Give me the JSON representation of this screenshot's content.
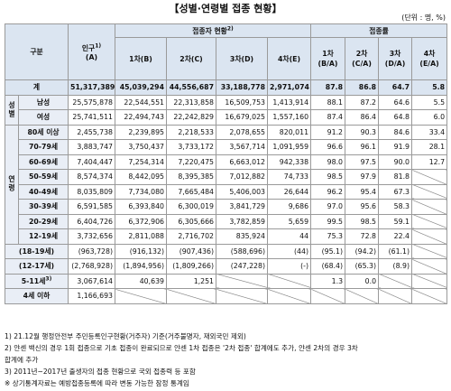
{
  "title": "【성별·연령별 접종 현황】",
  "unit": "(단위 : 명, %)",
  "table": {
    "header": {
      "category": "구분",
      "population": "인구",
      "population_note": "1)",
      "population_ref": "(A)",
      "vaccinated": "접종자 현황",
      "vaccinated_note": "2)",
      "rate": "접종률",
      "vaccinated_cols": [
        "1차(B)",
        "2차(C)",
        "3차(D)",
        "4차(E)"
      ],
      "rate_cols": [
        [
          "1차",
          "(B/A)"
        ],
        [
          "2차",
          "(C/A)"
        ],
        [
          "3차",
          "(D/A)"
        ],
        [
          "4차",
          "(E/A)"
        ]
      ]
    },
    "rows": [
      {
        "label": "계",
        "cells": [
          "51,317,389",
          "45,039,294",
          "44,556,687",
          "33,188,778",
          "2,971,074",
          "87.8",
          "86.8",
          "64.7",
          "5.8"
        ]
      },
      {
        "group": "성별",
        "rows": [
          {
            "label": "남성",
            "cells": [
              "25,575,878",
              "22,544,551",
              "22,313,858",
              "16,509,753",
              "1,413,914",
              "88.1",
              "87.2",
              "64.6",
              "5.5"
            ]
          },
          {
            "label": "여성",
            "cells": [
              "25,741,511",
              "22,494,743",
              "22,242,829",
              "16,679,025",
              "1,557,160",
              "87.4",
              "86.4",
              "64.8",
              "6.0"
            ]
          }
        ]
      },
      {
        "group": "연령",
        "rows": [
          {
            "label": "80세 이상",
            "cells": [
              "2,455,738",
              "2,239,895",
              "2,218,533",
              "2,078,655",
              "820,011",
              "91.2",
              "90.3",
              "84.6",
              "33.4"
            ]
          },
          {
            "label": "70-79세",
            "cells": [
              "3,883,747",
              "3,750,437",
              "3,733,172",
              "3,567,714",
              "1,091,959",
              "96.6",
              "96.1",
              "91.9",
              "28.1"
            ]
          },
          {
            "label": "60-69세",
            "cells": [
              "7,404,447",
              "7,254,314",
              "7,220,475",
              "6,663,012",
              "942,338",
              "98.0",
              "97.5",
              "90.0",
              "12.7"
            ]
          },
          {
            "label": "50-59세",
            "cells": [
              "8,574,374",
              "8,442,095",
              "8,395,385",
              "7,012,882",
              "74,733",
              "98.5",
              "97.9",
              "81.8",
              null
            ]
          },
          {
            "label": "40-49세",
            "cells": [
              "8,035,809",
              "7,734,080",
              "7,665,484",
              "5,406,003",
              "26,644",
              "96.2",
              "95.4",
              "67.3",
              null
            ]
          },
          {
            "label": "30-39세",
            "cells": [
              "6,591,585",
              "6,393,840",
              "6,300,019",
              "3,841,729",
              "9,686",
              "97.0",
              "95.6",
              "58.3",
              null
            ]
          },
          {
            "label": "20-29세",
            "cells": [
              "6,404,726",
              "6,372,906",
              "6,305,666",
              "3,782,859",
              "5,659",
              "99.5",
              "98.5",
              "59.1",
              null
            ]
          },
          {
            "label": "12-19세",
            "cells": [
              "3,732,656",
              "2,811,088",
              "2,716,702",
              "835,924",
              "44",
              "75.3",
              "72.8",
              "22.4",
              null
            ]
          }
        ]
      },
      {
        "label": "(18-19세)",
        "cells": [
          "(963,728)",
          "(916,132)",
          "(907,436)",
          "(588,696)",
          "(44)",
          "(95.1)",
          "(94.2)",
          "(61.1)",
          null
        ]
      },
      {
        "label": "(12-17세)",
        "cells": [
          "(2,768,928)",
          "(1,894,956)",
          "(1,809,266)",
          "(247,228)",
          "(-)",
          "(68.4)",
          "(65.3)",
          "(8.9)",
          null
        ]
      },
      {
        "label": "5-11세",
        "note": "3)",
        "cells": [
          "3,067,614",
          "40,639",
          "1,251",
          null,
          null,
          "1.3",
          "0.0",
          null,
          null
        ]
      },
      {
        "label": "4세 이하",
        "cells": [
          "1,166,693",
          null,
          null,
          null,
          null,
          null,
          null,
          null,
          null
        ]
      }
    ]
  },
  "notes": [
    "1) 21.12월 행정안전부 주민등록인구현황(거주자) 기준(거주불명자, 재외국민 제외)",
    "2) 얀센 백신의 경우 1회 접종으로 기초 접종이 완료되므로 얀센 1차 접종은 '2차 접종' 합계에도 추가, 얀센 2차의 경우 3차",
    "합계에 추가",
    "3) 2011년~2017년 출생자의 접종 현황으로 국외 접종력 등 포함",
    "※ 상기통계자료는 예방접종등록에 따라 변동 가능한 잠정 통계임"
  ]
}
